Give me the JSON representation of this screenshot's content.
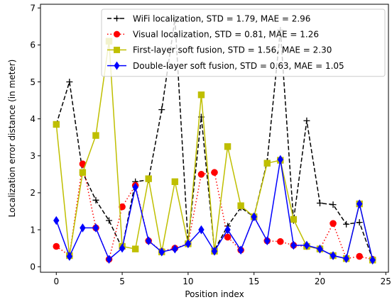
{
  "chart_data": {
    "type": "line",
    "title": "",
    "xlabel": "Position index",
    "ylabel": "Localization error distance (in meter)",
    "xlim": [
      -1.2,
      25.2
    ],
    "ylim": [
      -0.15,
      7.1
    ],
    "xticks": [
      0,
      5,
      10,
      15,
      20,
      25
    ],
    "yticks": [
      0,
      1,
      2,
      3,
      4,
      5,
      6,
      7
    ],
    "grid": false,
    "legend_position": "top-right",
    "x": [
      0,
      1,
      2,
      3,
      4,
      5,
      6,
      7,
      8,
      9,
      10,
      11,
      12,
      13,
      14,
      15,
      16,
      17,
      18,
      19,
      20,
      21,
      22,
      23,
      24
    ],
    "series": [
      {
        "name": "WiFi localization, STD = 1.79, MAE = 2.96",
        "color": "#000000",
        "line": "dashed",
        "marker": "plus",
        "values": [
          3.85,
          5.0,
          2.55,
          1.8,
          1.25,
          0.5,
          2.3,
          2.35,
          4.25,
          6.7,
          0.65,
          4.05,
          0.45,
          1.1,
          1.6,
          1.35,
          2.85,
          6.4,
          1.25,
          3.95,
          1.72,
          1.68,
          1.15,
          1.2,
          0.2
        ]
      },
      {
        "name": "Visual localization, STD = 0.81, MAE = 1.26",
        "color": "#ff0000",
        "line": "dotted",
        "marker": "circle",
        "values": [
          0.55,
          0.3,
          2.78,
          1.05,
          0.2,
          1.62,
          2.2,
          0.7,
          0.42,
          0.5,
          0.62,
          2.5,
          2.55,
          0.8,
          0.45,
          1.35,
          0.7,
          0.68,
          0.58,
          0.55,
          0.48,
          1.17,
          0.22,
          0.28,
          0.2
        ]
      },
      {
        "name": "First-layer soft fusion, STD = 1.56, MAE = 2.30",
        "color": "#bfbf00",
        "line": "solid",
        "marker": "square",
        "values": [
          3.85,
          0.3,
          2.55,
          3.55,
          6.1,
          0.55,
          0.48,
          2.38,
          0.4,
          2.3,
          0.62,
          4.65,
          0.42,
          3.25,
          1.65,
          1.35,
          2.8,
          2.88,
          1.28,
          0.55,
          0.48,
          0.3,
          0.22,
          1.7,
          0.18
        ]
      },
      {
        "name": "Double-layer soft fusion, STD = 0.63, MAE = 1.05",
        "color": "#0000ff",
        "line": "solid",
        "marker": "diamond",
        "values": [
          1.25,
          0.28,
          1.05,
          1.05,
          0.2,
          0.5,
          2.15,
          0.7,
          0.4,
          0.48,
          0.62,
          1.0,
          0.42,
          1.0,
          0.45,
          1.35,
          0.7,
          2.9,
          0.58,
          0.58,
          0.48,
          0.3,
          0.22,
          1.7,
          0.18
        ]
      }
    ]
  }
}
